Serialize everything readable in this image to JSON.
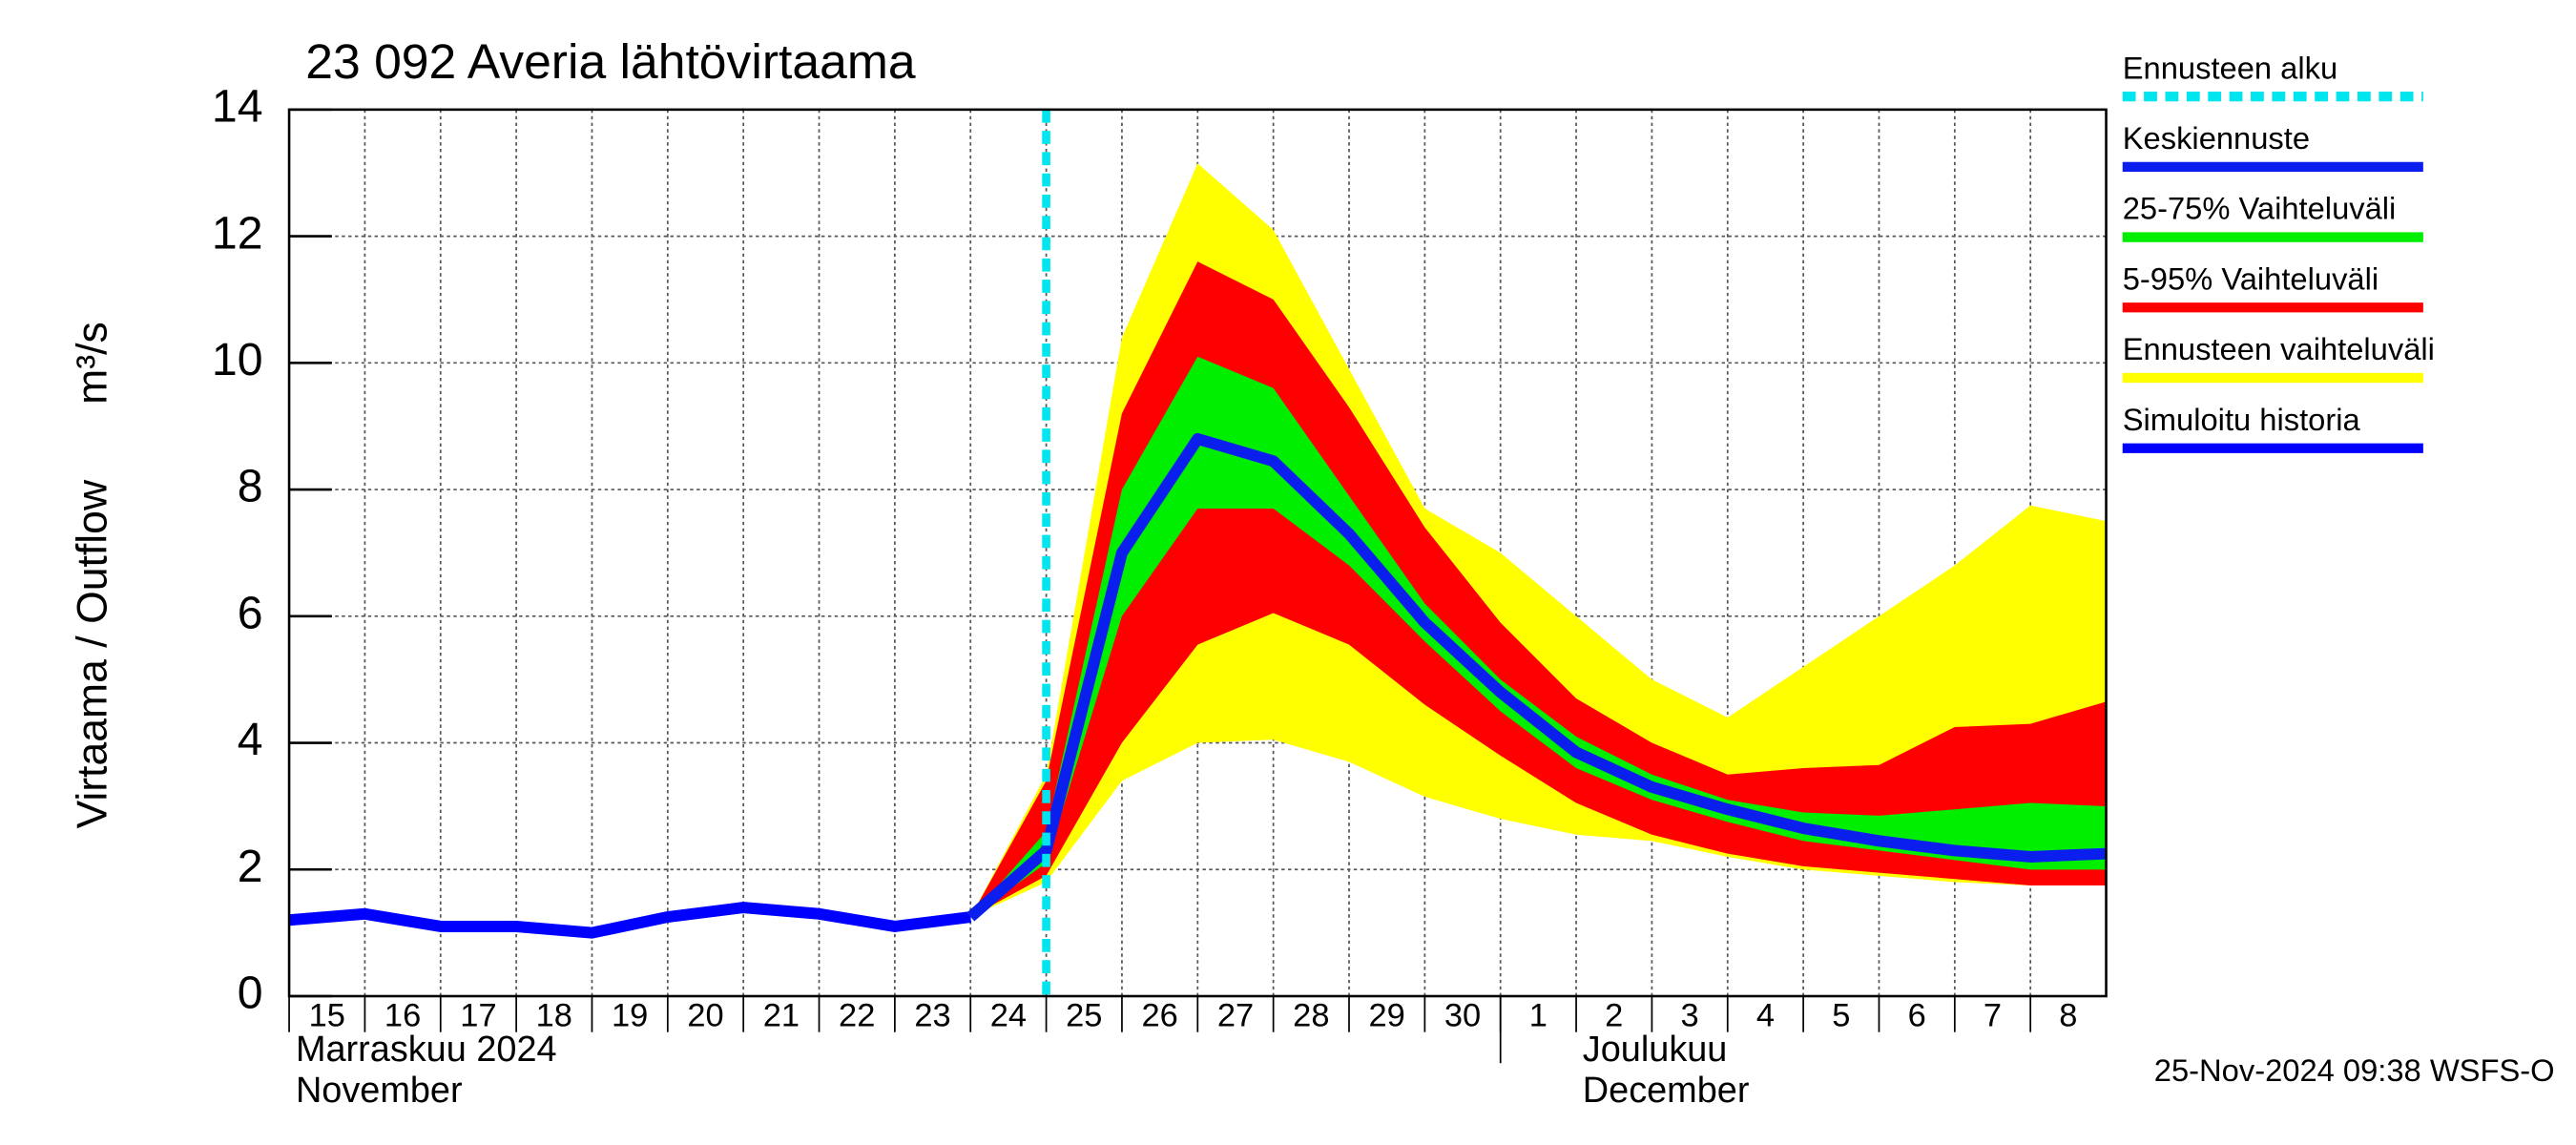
{
  "chart_data": {
    "type": "band-forecast",
    "title": "23 092 Averia lähtövirtaama",
    "ylabel": "Virtaama / Outflow",
    "yunit": "m³/s",
    "footer": "25-Nov-2024 09:38 WSFS-O",
    "x": [
      "2024-11-15",
      "2024-11-16",
      "2024-11-17",
      "2024-11-18",
      "2024-11-19",
      "2024-11-20",
      "2024-11-21",
      "2024-11-22",
      "2024-11-23",
      "2024-11-24",
      "2024-11-25",
      "2024-11-26",
      "2024-11-27",
      "2024-11-28",
      "2024-11-29",
      "2024-11-30",
      "2024-12-01",
      "2024-12-02",
      "2024-12-03",
      "2024-12-04",
      "2024-12-05",
      "2024-12-06",
      "2024-12-07",
      "2024-12-08",
      "2024-12-09"
    ],
    "xlim": [
      "2024-11-15",
      "2024-12-09"
    ],
    "xticks": [
      {
        "value": "2024-11-15",
        "label": "15"
      },
      {
        "value": "2024-11-16",
        "label": "16"
      },
      {
        "value": "2024-11-17",
        "label": "17"
      },
      {
        "value": "2024-11-18",
        "label": "18"
      },
      {
        "value": "2024-11-19",
        "label": "19"
      },
      {
        "value": "2024-11-20",
        "label": "20"
      },
      {
        "value": "2024-11-21",
        "label": "21"
      },
      {
        "value": "2024-11-22",
        "label": "22"
      },
      {
        "value": "2024-11-23",
        "label": "23"
      },
      {
        "value": "2024-11-24",
        "label": "24"
      },
      {
        "value": "2024-11-25",
        "label": "25"
      },
      {
        "value": "2024-11-26",
        "label": "26"
      },
      {
        "value": "2024-11-27",
        "label": "27"
      },
      {
        "value": "2024-11-28",
        "label": "28"
      },
      {
        "value": "2024-11-29",
        "label": "29"
      },
      {
        "value": "2024-11-30",
        "label": "30"
      },
      {
        "value": "2024-12-01",
        "label": "1"
      },
      {
        "value": "2024-12-02",
        "label": "2"
      },
      {
        "value": "2024-12-03",
        "label": "3"
      },
      {
        "value": "2024-12-04",
        "label": "4"
      },
      {
        "value": "2024-12-05",
        "label": "5"
      },
      {
        "value": "2024-12-06",
        "label": "6"
      },
      {
        "value": "2024-12-07",
        "label": "7"
      },
      {
        "value": "2024-12-08",
        "label": "8"
      }
    ],
    "month_labels": [
      {
        "value": "2024-11-15",
        "label": [
          "Marraskuu 2024",
          "November"
        ]
      },
      {
        "value": "2024-12-01",
        "label": [
          "Joulukuu",
          "December"
        ]
      }
    ],
    "ylim": [
      0,
      14
    ],
    "yticks": [
      0,
      2,
      4,
      6,
      8,
      10,
      12,
      14
    ],
    "grid": true,
    "forecast_start": {
      "name": "Ennusteen alku",
      "color": "#00e5ee",
      "x": "2024-11-25"
    },
    "series": [
      {
        "name": "Keskiennuste",
        "kind": "line",
        "color": "#0a1fee",
        "values": [
          null,
          null,
          null,
          null,
          null,
          null,
          null,
          null,
          null,
          1.25,
          2.3,
          7.0,
          8.8,
          8.45,
          7.3,
          5.9,
          4.8,
          3.85,
          3.3,
          2.95,
          2.65,
          2.45,
          2.3,
          2.2,
          2.25
        ]
      },
      {
        "name": "25-75% Vaihteluväli",
        "kind": "band",
        "color": "#00ee00",
        "lower": [
          null,
          null,
          null,
          null,
          null,
          null,
          null,
          null,
          null,
          1.25,
          2.1,
          6.0,
          7.7,
          7.7,
          6.8,
          5.6,
          4.5,
          3.6,
          3.1,
          2.75,
          2.45,
          2.3,
          2.15,
          2.0,
          2.0
        ],
        "upper": [
          null,
          null,
          null,
          null,
          null,
          null,
          null,
          null,
          null,
          1.25,
          2.6,
          8.0,
          10.1,
          9.6,
          7.9,
          6.2,
          5.0,
          4.1,
          3.5,
          3.1,
          2.9,
          2.85,
          2.95,
          3.05,
          3.0
        ]
      },
      {
        "name": "5-95% Vaihteluväli",
        "kind": "band",
        "color": "#ff0000",
        "lower": [
          null,
          null,
          null,
          null,
          null,
          null,
          null,
          null,
          null,
          1.25,
          1.9,
          4.0,
          5.55,
          6.05,
          5.55,
          4.6,
          3.8,
          3.05,
          2.55,
          2.25,
          2.05,
          1.95,
          1.85,
          1.75,
          1.75
        ],
        "upper": [
          null,
          null,
          null,
          null,
          null,
          null,
          null,
          null,
          null,
          1.25,
          3.4,
          9.2,
          11.6,
          11.0,
          9.3,
          7.4,
          5.9,
          4.7,
          4.0,
          3.5,
          3.6,
          3.65,
          4.25,
          4.3,
          4.65
        ]
      },
      {
        "name": "Ennusteen vaihteluväli",
        "kind": "band",
        "color": "#ffff00",
        "lower": [
          null,
          null,
          null,
          null,
          null,
          null,
          null,
          null,
          null,
          1.25,
          1.8,
          3.4,
          4.0,
          4.05,
          3.7,
          3.15,
          2.8,
          2.55,
          2.45,
          2.2,
          2.0,
          1.9,
          1.8,
          1.75,
          1.75
        ],
        "upper": [
          null,
          null,
          null,
          null,
          null,
          null,
          null,
          null,
          null,
          1.25,
          3.5,
          10.4,
          13.15,
          12.1,
          9.9,
          7.7,
          7.0,
          6.0,
          5.0,
          4.4,
          5.2,
          6.0,
          6.8,
          7.75,
          7.5
        ]
      },
      {
        "name": "Simuloitu historia",
        "kind": "line",
        "color": "#0000ff",
        "values": [
          1.2,
          1.3,
          1.1,
          1.1,
          1.0,
          1.25,
          1.4,
          1.3,
          1.1,
          1.25,
          null,
          null,
          null,
          null,
          null,
          null,
          null,
          null,
          null,
          null,
          null,
          null,
          null,
          null,
          null
        ]
      }
    ]
  }
}
